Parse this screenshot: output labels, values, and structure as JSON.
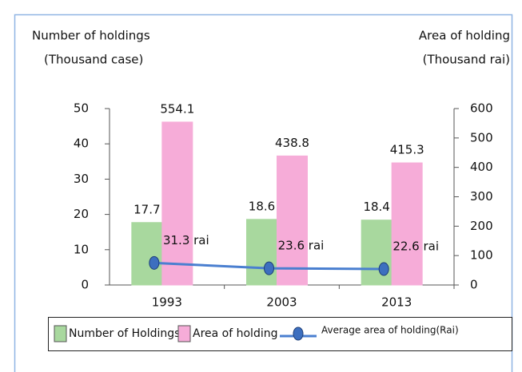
{
  "chart_data": {
    "type": "bar",
    "y_label_lines": [
      "Number of holdings",
      "(Thousand case)"
    ],
    "y2_label_lines": [
      "Area of holding",
      "(Thousand rai)"
    ],
    "categories": [
      "1993",
      "2003",
      "2013"
    ],
    "series": [
      {
        "name": "Number of Holdings",
        "color": "#a8d89e",
        "values": [
          17.7,
          18.6,
          18.4
        ]
      },
      {
        "name": "Area of holding",
        "color": "#f6acd8",
        "values": [
          554.1,
          438.8,
          415.3
        ],
        "axis": "y2"
      },
      {
        "name": "Average area of holding(Rai)",
        "color": "#4a7fd0",
        "type": "line",
        "values": [
          31.3,
          23.6,
          22.6
        ],
        "value_labels": [
          "31.3 rai",
          "23.6 rai",
          "22.6 rai"
        ],
        "axis": "y3"
      }
    ],
    "ylim": [
      0,
      50
    ],
    "yticks": [
      0,
      10,
      20,
      30,
      40,
      50
    ],
    "y2lim": [
      0,
      600
    ],
    "y2ticks": [
      0,
      100,
      200,
      300,
      400,
      500,
      600
    ],
    "y3lim": [
      0,
      250
    ],
    "legend": "bottom"
  }
}
